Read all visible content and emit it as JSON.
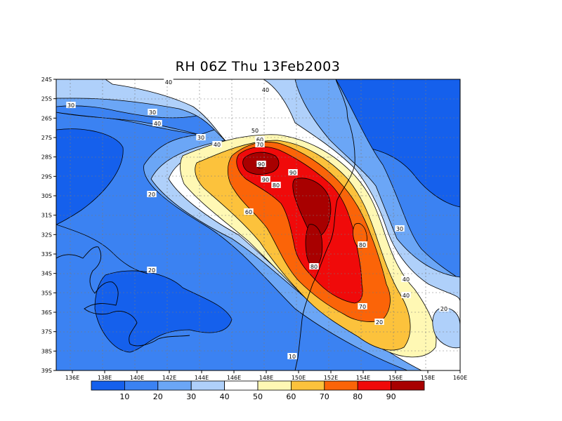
{
  "title": "RH 06Z Thu 13Feb2003",
  "x_ticks": [
    "136E",
    "138E",
    "140E",
    "142E",
    "144E",
    "146E",
    "148E",
    "150E",
    "152E",
    "154E",
    "156E",
    "158E",
    "160E"
  ],
  "y_ticks": [
    "24S",
    "25S",
    "26S",
    "27S",
    "28S",
    "29S",
    "30S",
    "31S",
    "32S",
    "33S",
    "34S",
    "35S",
    "36S",
    "37S",
    "38S",
    "39S"
  ],
  "colorbar": {
    "labels": [
      "10",
      "20",
      "30",
      "40",
      "50",
      "60",
      "70",
      "80",
      "90"
    ],
    "colors": [
      "#1560ec",
      "#3b82f2",
      "#6ba6f6",
      "#afd0fa",
      "#ffffff",
      "#fff8b4",
      "#fcc23c",
      "#fb6408",
      "#f00a0a",
      "#a80000"
    ]
  },
  "contour_labels": [
    "40",
    "40",
    "30",
    "40",
    "30",
    "30",
    "40",
    "50",
    "60",
    "70",
    "90",
    "90",
    "80",
    "20",
    "60",
    "90",
    "80",
    "80",
    "70",
    "20",
    "30",
    "40",
    "40",
    "20",
    "10",
    "20"
  ],
  "chart_data": {
    "type": "heatmap",
    "title": "RH 06Z Thu 13Feb2003",
    "xlim": [
      135,
      160
    ],
    "ylim": [
      -39,
      -24
    ],
    "x_tick_labels": [
      "136E",
      "138E",
      "140E",
      "142E",
      "144E",
      "146E",
      "148E",
      "150E",
      "152E",
      "154E",
      "156E",
      "158E",
      "160E"
    ],
    "y_tick_labels": [
      "24S",
      "25S",
      "26S",
      "27S",
      "28S",
      "29S",
      "30S",
      "31S",
      "32S",
      "33S",
      "34S",
      "35S",
      "36S",
      "37S",
      "38S",
      "39S"
    ],
    "contour_levels": [
      10,
      20,
      30,
      40,
      50,
      60,
      70,
      80,
      90
    ],
    "grid": true,
    "legend": "bottom colorbar"
  }
}
